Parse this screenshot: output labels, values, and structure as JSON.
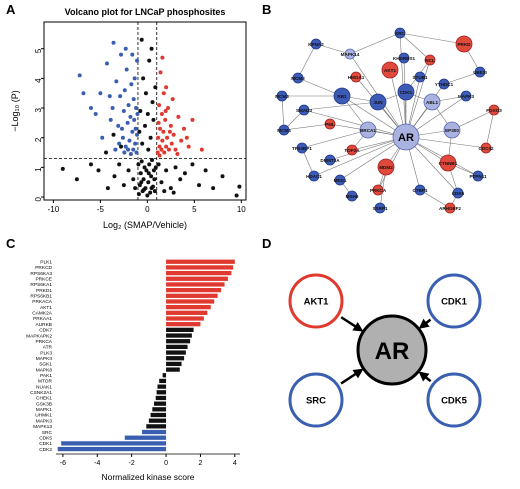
{
  "panels": {
    "a": "A",
    "b": "B",
    "c": "C",
    "d": "D"
  },
  "colors": {
    "red": "#e0392f",
    "blue": "#3a5fb0",
    "black": "#111111",
    "node_blue": "#3d5ab5",
    "node_lightblue": "#aab3e0",
    "node_red": "#e04a3c",
    "node_pink": "#f0a0a0",
    "net_edge": "#777777"
  },
  "chart_data": [
    {
      "type": "scatter",
      "title": "Volcano plot for LNCaP phosphosites",
      "xlabel": "Log₂ (SMAP/Vehicle)",
      "ylabel": "−Log₁₀ (P)",
      "xlim": [
        -11,
        10.5
      ],
      "ylim": [
        -0.1,
        5.9
      ],
      "xticks": [
        -10,
        -5,
        0,
        5,
        10
      ],
      "yticks": [
        0,
        1,
        2,
        3,
        4,
        5
      ],
      "thresholds": {
        "x": [
          -1,
          1
        ],
        "y": 1.3
      },
      "grid": false,
      "series": [
        {
          "color": "blue",
          "points": [
            [
              -7.2,
              4.1
            ],
            [
              -6.0,
              3.0
            ],
            [
              -5.5,
              2.8
            ],
            [
              -4.3,
              4.5
            ],
            [
              -3.9,
              2.6
            ],
            [
              -3.6,
              5.2
            ],
            [
              -3.3,
              3.9
            ],
            [
              -3.1,
              2.4
            ],
            [
              -2.9,
              3.4
            ],
            [
              -2.8,
              4.8
            ],
            [
              -2.6,
              2.0
            ],
            [
              -2.5,
              2.9
            ],
            [
              -2.4,
              3.6
            ],
            [
              -2.3,
              1.7
            ],
            [
              -2.2,
              4.3
            ],
            [
              -2.1,
              2.5
            ],
            [
              -2.0,
              3.1
            ],
            [
              -1.9,
              1.9
            ],
            [
              -1.8,
              2.7
            ],
            [
              -1.7,
              3.8
            ],
            [
              -1.6,
              2.2
            ],
            [
              -1.5,
              1.6
            ],
            [
              -1.45,
              3.3
            ],
            [
              -1.4,
              2.6
            ],
            [
              -1.35,
              4.0
            ],
            [
              -1.3,
              1.8
            ],
            [
              -1.25,
              2.3
            ],
            [
              -1.2,
              3.0
            ],
            [
              -1.15,
              1.5
            ],
            [
              -1.1,
              2.1
            ],
            [
              -1.1,
              4.6
            ],
            [
              -1.05,
              2.8
            ],
            [
              -4.8,
              2.0
            ],
            [
              -3.7,
              3.0
            ],
            [
              -3.0,
              1.8
            ],
            [
              -2.7,
              2.3
            ],
            [
              -2.45,
              1.5
            ],
            [
              -2.05,
              1.6
            ],
            [
              -1.75,
              1.45
            ],
            [
              -4.0,
              3.4
            ],
            [
              -5.0,
              3.5
            ],
            [
              -3.4,
              1.6
            ],
            [
              -6.8,
              3.5
            ],
            [
              -2.3,
              5.0
            ],
            [
              -1.6,
              4.8
            ]
          ]
        },
        {
          "color": "red",
          "points": [
            [
              1.1,
              1.5
            ],
            [
              1.15,
              2.0
            ],
            [
              1.2,
              2.5
            ],
            [
              1.25,
              3.1
            ],
            [
              1.3,
              1.7
            ],
            [
              1.35,
              2.3
            ],
            [
              1.4,
              4.2
            ],
            [
              1.5,
              1.6
            ],
            [
              1.55,
              2.8
            ],
            [
              1.6,
              1.9
            ],
            [
              1.7,
              2.2
            ],
            [
              1.75,
              3.5
            ],
            [
              1.8,
              1.5
            ],
            [
              1.9,
              2.6
            ],
            [
              2.0,
              1.7
            ],
            [
              2.1,
              2.0
            ],
            [
              2.2,
              3.0
            ],
            [
              2.3,
              1.6
            ],
            [
              2.5,
              2.4
            ],
            [
              2.6,
              1.8
            ],
            [
              2.8,
              2.1
            ],
            [
              3.0,
              1.6
            ],
            [
              3.3,
              2.7
            ],
            [
              3.6,
              1.9
            ],
            [
              3.9,
              2.3
            ],
            [
              4.4,
              1.7
            ],
            [
              4.8,
              2.6
            ],
            [
              5.8,
              1.6
            ],
            [
              2.0,
              3.7
            ],
            [
              1.6,
              4.7
            ],
            [
              2.7,
              3.3
            ],
            [
              1.3,
              1.4
            ],
            [
              3.2,
              1.45
            ],
            [
              4.2,
              2.0
            ],
            [
              1.95,
              2.9
            ],
            [
              2.4,
              2.2
            ]
          ]
        },
        {
          "color": "black",
          "points": [
            [
              -0.9,
              0.1
            ],
            [
              -0.8,
              0.4
            ],
            [
              -0.7,
              0.8
            ],
            [
              -0.6,
              1.2
            ],
            [
              -0.5,
              0.2
            ],
            [
              -0.4,
              0.6
            ],
            [
              -0.3,
              1.0
            ],
            [
              -0.2,
              0.3
            ],
            [
              -0.1,
              0.9
            ],
            [
              0.0,
              0.05
            ],
            [
              0.1,
              0.5
            ],
            [
              0.2,
              1.1
            ],
            [
              0.3,
              0.15
            ],
            [
              0.4,
              0.7
            ],
            [
              0.5,
              1.25
            ],
            [
              0.6,
              0.35
            ],
            [
              0.7,
              0.9
            ],
            [
              0.8,
              0.2
            ],
            [
              0.9,
              1.0
            ],
            [
              -0.95,
              1.1
            ],
            [
              -0.65,
              0.5
            ],
            [
              -0.35,
              0.25
            ],
            [
              0.15,
              0.8
            ],
            [
              0.45,
              0.3
            ],
            [
              0.75,
              0.6
            ],
            [
              -1.5,
              0.6
            ],
            [
              -2.0,
              0.9
            ],
            [
              -2.5,
              0.4
            ],
            [
              -3.0,
              1.1
            ],
            [
              -3.5,
              0.7
            ],
            [
              -4.2,
              0.3
            ],
            [
              -5.2,
              0.9
            ],
            [
              -6.0,
              1.1
            ],
            [
              -7.5,
              0.6
            ],
            [
              -9.0,
              0.95
            ],
            [
              -2.8,
              1.7
            ],
            [
              -3.6,
              2.1
            ],
            [
              -4.4,
              1.5
            ],
            [
              -1.3,
              0.3
            ],
            [
              1.5,
              0.5
            ],
            [
              2.0,
              0.9
            ],
            [
              2.5,
              0.3
            ],
            [
              3.0,
              1.0
            ],
            [
              3.5,
              0.6
            ],
            [
              4.0,
              0.8
            ],
            [
              4.8,
              1.1
            ],
            [
              5.5,
              0.4
            ],
            [
              6.2,
              0.9
            ],
            [
              7.0,
              0.3
            ],
            [
              8.0,
              0.7
            ],
            [
              9.5,
              0.05
            ],
            [
              9.8,
              0.35
            ],
            [
              1.2,
              1.1
            ],
            [
              1.8,
              0.2
            ],
            [
              2.8,
              0.15
            ],
            [
              -0.55,
              1.8
            ],
            [
              -0.25,
              2.4
            ],
            [
              0.35,
              2.0
            ],
            [
              0.65,
              2.6
            ],
            [
              0.1,
              1.6
            ],
            [
              -0.75,
              2.9
            ],
            [
              0.55,
              3.2
            ],
            [
              -0.15,
              3.5
            ],
            [
              0.2,
              4.6
            ],
            [
              -0.45,
              4.0
            ],
            [
              0.85,
              3.7
            ],
            [
              -0.85,
              2.2
            ],
            [
              0.05,
              2.8
            ],
            [
              0.45,
              5.0
            ],
            [
              -0.6,
              5.3
            ]
          ]
        }
      ]
    },
    {
      "type": "network",
      "nodes": [
        {
          "label": "AR",
          "color": "blue_light",
          "big": true
        },
        {
          "label": "JUN",
          "color": "blue"
        },
        {
          "label": "RB1",
          "color": "blue"
        },
        {
          "label": "CDK1",
          "color": "blue"
        },
        {
          "label": "ABL1",
          "color": "blue_light"
        },
        {
          "label": "BRCA1",
          "color": "blue_light"
        },
        {
          "label": "SMAD3",
          "color": "blue"
        },
        {
          "label": "EP300",
          "color": "blue_light"
        },
        {
          "label": "AKT1",
          "color": "red"
        },
        {
          "label": "MDM2",
          "color": "red"
        },
        {
          "label": "PRKD",
          "color": "red"
        },
        {
          "label": "CTNNB1",
          "color": "red"
        },
        {
          "label": "MAPK14",
          "color": "blue_light"
        },
        {
          "label": "STUB1",
          "color": "blue"
        },
        {
          "label": "HMGA1",
          "color": "red"
        },
        {
          "label": "NCL",
          "color": "red"
        },
        {
          "label": "MCM2",
          "color": "blue"
        },
        {
          "label": "PTPN11",
          "color": "blue"
        },
        {
          "label": "MAPK3",
          "color": "blue"
        },
        {
          "label": "TP53BP1",
          "color": "blue"
        },
        {
          "label": "KHDRBS1",
          "color": "blue"
        },
        {
          "label": "SRC",
          "color": "blue"
        },
        {
          "label": "TOP2A",
          "color": "red"
        },
        {
          "label": "YTHDC1",
          "color": "blue"
        },
        {
          "label": "FOXO3",
          "color": "red"
        },
        {
          "label": "MCM3",
          "color": "blue"
        },
        {
          "label": "MCM4",
          "color": "blue"
        },
        {
          "label": "DNMT3A",
          "color": "blue"
        },
        {
          "label": "CDK5",
          "color": "blue"
        },
        {
          "label": "ARHGEF2",
          "color": "red"
        },
        {
          "label": "PRKCA",
          "color": "red"
        },
        {
          "label": "CTBP1",
          "color": "blue"
        },
        {
          "label": "CDC42",
          "color": "red"
        },
        {
          "label": "SSRP1",
          "color": "blue"
        },
        {
          "label": "MED1",
          "color": "blue"
        },
        {
          "label": "MSH6",
          "color": "blue"
        },
        {
          "label": "HDAC1",
          "color": "blue"
        },
        {
          "label": "PML",
          "color": "red"
        },
        {
          "label": "UBE2I",
          "color": "blue"
        },
        {
          "label": "KPNA2",
          "color": "blue"
        }
      ]
    },
    {
      "type": "bar",
      "orientation": "horizontal",
      "xlabel": "Normalized kinase score",
      "xlim": [
        -6.4,
        4.3
      ],
      "xticks": [
        -6,
        -4,
        -2,
        0,
        2,
        4
      ],
      "categories": [
        "PLK1",
        "PRKCD",
        "RPS6KA3",
        "PRKCE",
        "RPS6KA1",
        "PRKD1",
        "RPS6KB1",
        "PRKACA",
        "AKT1",
        "CAMK2A",
        "PRKAA1",
        "AURKB",
        "CDK7",
        "MAPKAPK2",
        "PRKCA",
        "ATR",
        "PLK3",
        "MAPKII",
        "SGK1",
        "MAPK8",
        "PAK1",
        "MTOR",
        "NUAK1",
        "CSNK2A1",
        "CHEK1",
        "GSK3B",
        "MAPK1",
        "UHMK1",
        "MAPK3",
        "MAPK13",
        "SRC",
        "CDK5",
        "CDK1",
        "CDK2"
      ],
      "values": [
        4.0,
        3.9,
        3.8,
        3.6,
        3.4,
        3.2,
        3.0,
        2.8,
        2.6,
        2.4,
        2.2,
        2.0,
        1.6,
        1.5,
        1.4,
        1.25,
        1.15,
        1.05,
        0.9,
        0.8,
        -0.2,
        -0.4,
        -0.5,
        -0.55,
        -0.6,
        -0.7,
        -0.8,
        -0.9,
        -1.0,
        -1.15,
        -1.4,
        -2.4,
        -6.1,
        -6.3
      ],
      "colors": [
        "red",
        "red",
        "red",
        "red",
        "red",
        "red",
        "red",
        "red",
        "red",
        "red",
        "red",
        "red",
        "black",
        "black",
        "black",
        "black",
        "black",
        "black",
        "black",
        "black",
        "black",
        "black",
        "black",
        "black",
        "black",
        "black",
        "black",
        "black",
        "black",
        "black",
        "blue",
        "blue",
        "blue",
        "blue"
      ]
    },
    {
      "type": "diagram",
      "center": "AR",
      "nodes": [
        {
          "label": "AKT1",
          "ring": "red"
        },
        {
          "label": "CDK1",
          "ring": "blue"
        },
        {
          "label": "SRC",
          "ring": "blue"
        },
        {
          "label": "CDK5",
          "ring": "blue"
        }
      ]
    }
  ]
}
